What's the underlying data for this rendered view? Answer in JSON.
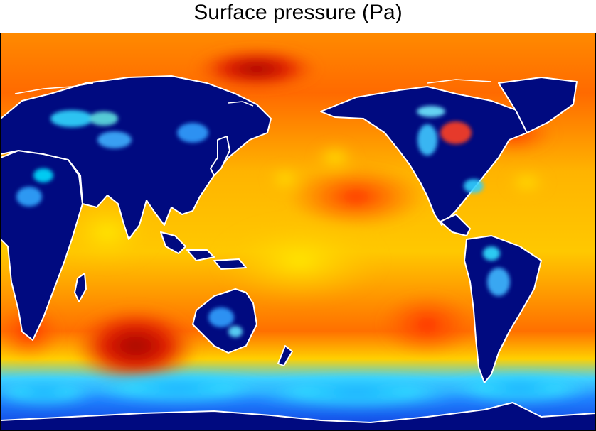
{
  "title": "Surface pressure (Pa)",
  "map": {
    "variable": "Surface pressure",
    "units": "Pa",
    "projection": "equirectangular (Pacific-centred)",
    "colormap": "jet",
    "coastline_color": "#ffffff",
    "land_color": "#000a80",
    "colors": {
      "low": "#000a80",
      "mid_low": "#00c8ff",
      "mid": "#ffe000",
      "high": "#ff6a00",
      "max": "#a00000"
    }
  }
}
